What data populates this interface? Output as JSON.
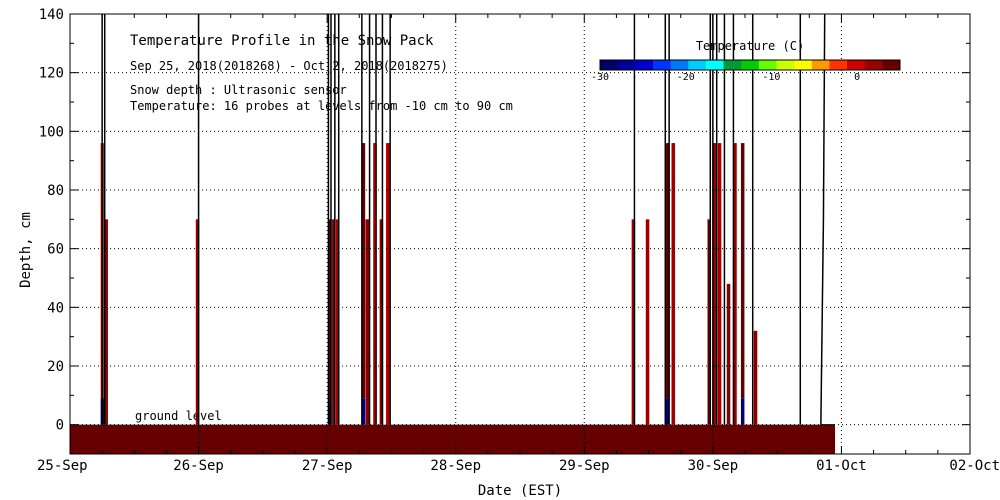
{
  "chart_data": {
    "type": "heatmap",
    "title": "Temperature Profile in the Snow Pack",
    "subtitle": "Sep 25, 2018(2018268) - Oct  2, 2018(2018275)",
    "notes": [
      "Snow depth : Ultrasonic sensor",
      "Temperature: 16 probes at levels from -10 cm to 90 cm"
    ],
    "xlabel": "Date (EST)",
    "ylabel": "Depth, cm",
    "x_tick_labels": [
      "25-Sep",
      "26-Sep",
      "27-Sep",
      "28-Sep",
      "29-Sep",
      "30-Sep",
      "01-Oct",
      "02-Oct"
    ],
    "x_range_days": [
      0,
      7
    ],
    "ylim": [
      -10,
      140
    ],
    "y_ticks": [
      0,
      20,
      40,
      60,
      80,
      100,
      120,
      140
    ],
    "grid": true,
    "ground_label": "ground level",
    "colorbar": {
      "label": "Temperature (C)",
      "range": [
        -30,
        5
      ],
      "tick_values": [
        -30,
        -20,
        -10,
        0
      ],
      "tick_labels": [
        "-30",
        "-20",
        "-10",
        "0"
      ],
      "colors": [
        "#000066",
        "#000099",
        "#0000cc",
        "#0033ff",
        "#0077ff",
        "#00ccff",
        "#00ffff",
        "#009933",
        "#00cc00",
        "#66ff00",
        "#ccff00",
        "#ffff00",
        "#ff9900",
        "#ff3300",
        "#cc0000",
        "#990000",
        "#660000"
      ]
    },
    "ground_fill_end_day": 5.95,
    "soil_color": "#660000",
    "spikes": [
      {
        "day": 0.25,
        "bottom": 9,
        "top": 96,
        "color": "#ee1100"
      },
      {
        "day": 0.28,
        "bottom": 0,
        "top": 70,
        "color": "#990000"
      },
      {
        "day": 0.99,
        "bottom": 0,
        "top": 70,
        "color": "#990000"
      },
      {
        "day": 2.02,
        "bottom": 8,
        "top": 70,
        "color": "#660000"
      },
      {
        "day": 2.05,
        "bottom": 0,
        "top": 70,
        "color": "#770000"
      },
      {
        "day": 2.08,
        "bottom": 0,
        "top": 70,
        "color": "#aa0000"
      },
      {
        "day": 2.28,
        "bottom": 9,
        "top": 96,
        "color": "#660000"
      },
      {
        "day": 2.31,
        "bottom": 0,
        "top": 70,
        "color": "#880000"
      },
      {
        "day": 2.37,
        "bottom": 0,
        "top": 96,
        "color": "#aa0000"
      },
      {
        "day": 2.42,
        "bottom": 0,
        "top": 70,
        "color": "#880000"
      },
      {
        "day": 2.47,
        "bottom": 0,
        "top": 96,
        "color": "#aa0000"
      },
      {
        "day": 4.38,
        "bottom": 0,
        "top": 70,
        "color": "#990000"
      },
      {
        "day": 4.49,
        "bottom": 0,
        "top": 70,
        "color": "#990000"
      },
      {
        "day": 4.64,
        "bottom": 9,
        "top": 96,
        "color": "#660000"
      },
      {
        "day": 4.69,
        "bottom": 0,
        "top": 96,
        "color": "#990000"
      },
      {
        "day": 4.97,
        "bottom": 0,
        "top": 70,
        "color": "#660000"
      },
      {
        "day": 5.01,
        "bottom": 0,
        "top": 96,
        "color": "#990000"
      },
      {
        "day": 5.05,
        "bottom": 0,
        "top": 96,
        "color": "#aa0000"
      },
      {
        "day": 5.12,
        "bottom": 0,
        "top": 48,
        "color": "#880000"
      },
      {
        "day": 5.17,
        "bottom": 0,
        "top": 96,
        "color": "#990000"
      },
      {
        "day": 5.23,
        "bottom": 9,
        "top": 96,
        "color": "#660000"
      },
      {
        "day": 5.33,
        "bottom": 0,
        "top": 32,
        "color": "#880000"
      }
    ],
    "snow_depth_lines": [
      0.25,
      0.27,
      1.0,
      2.01,
      2.03,
      2.06,
      2.09,
      2.27,
      2.33,
      2.38,
      2.43,
      2.49,
      4.39,
      4.63,
      4.66,
      4.98,
      5.0,
      5.03,
      5.09,
      5.16,
      5.31,
      5.68
    ]
  }
}
